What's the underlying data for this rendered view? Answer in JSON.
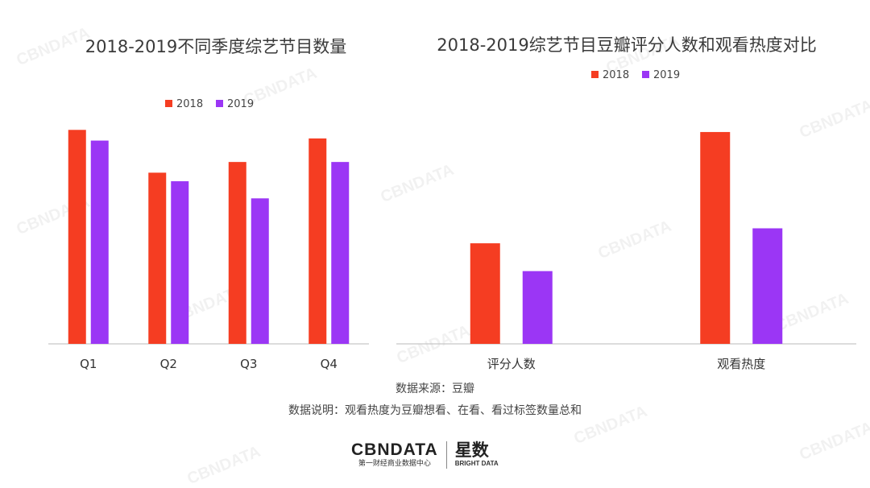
{
  "colors": {
    "series_2018": "#f53d22",
    "series_2019": "#9b36f5"
  },
  "chart_data": [
    {
      "type": "bar",
      "title": "2018-2019不同季度综艺节目数量",
      "categories": [
        "Q1",
        "Q2",
        "Q3",
        "Q4"
      ],
      "series": [
        {
          "name": "2018",
          "values": [
            100,
            80,
            85,
            96
          ]
        },
        {
          "name": "2019",
          "values": [
            95,
            76,
            68,
            85
          ]
        }
      ],
      "ylim": [
        0,
        105
      ],
      "grid": false,
      "legend": "top-center"
    },
    {
      "type": "bar",
      "title": "2018-2019综艺节目豆瓣评分人数和观看热度对比",
      "categories": [
        "评分人数",
        "观看热度"
      ],
      "series": [
        {
          "name": "2018",
          "values": [
            47,
            99
          ]
        },
        {
          "name": "2019",
          "values": [
            34,
            54
          ]
        }
      ],
      "ylim": [
        0,
        105
      ],
      "grid": false,
      "legend": "top-center"
    }
  ],
  "footer": {
    "source": "数据来源：豆瓣",
    "note": "数据说明：观看热度为豆瓣想看、在看、看过标签数量总和"
  },
  "logo": {
    "main": "CBNDATA",
    "sub": "第一财经商业数据中心",
    "brand_cn": "星数",
    "brand_en": "BRIGHT DATA"
  },
  "watermark": "CBNDATA"
}
